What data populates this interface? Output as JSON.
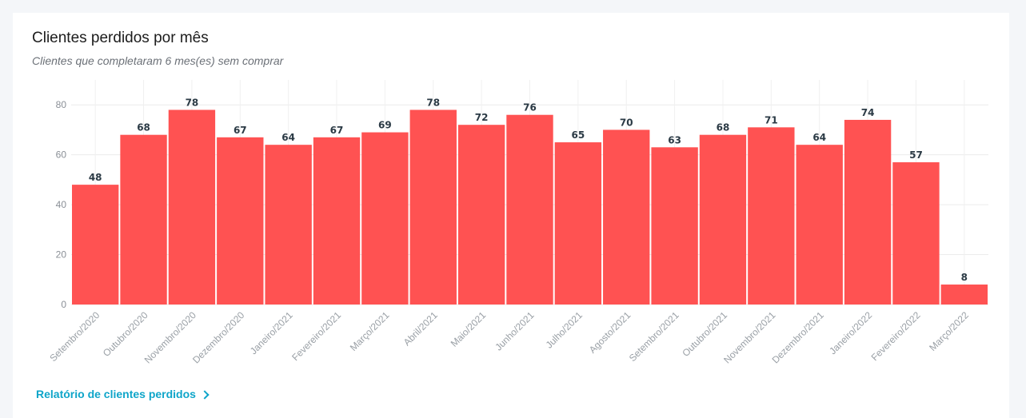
{
  "card": {
    "title": "Clientes perdidos por mês",
    "subtitle": "Clientes que completaram 6 mes(es) sem comprar",
    "report_link_label": "Relatório de clientes perdidos",
    "report_link_icon": "chevron-right-icon"
  },
  "chart_data": {
    "type": "bar",
    "categories": [
      "Setembro/2020",
      "Outubro/2020",
      "Novembro/2020",
      "Dezembro/2020",
      "Janeiro/2021",
      "Fevereiro/2021",
      "Março/2021",
      "Abril/2021",
      "Maio/2021",
      "Junho/2021",
      "Julho/2021",
      "Agosto/2021",
      "Setembro/2021",
      "Outubro/2021",
      "Novembro/2021",
      "Dezembro/2021",
      "Janeiro/2022",
      "Fevereiro/2022",
      "Março/2022"
    ],
    "values": [
      48,
      68,
      78,
      67,
      64,
      67,
      69,
      78,
      72,
      76,
      65,
      70,
      63,
      68,
      71,
      64,
      74,
      57,
      8
    ],
    "y_ticks": [
      0,
      20,
      40,
      60,
      80
    ],
    "ylim": [
      0,
      90
    ],
    "bar_color": "#ff5252",
    "grid": true,
    "legend": "none"
  }
}
